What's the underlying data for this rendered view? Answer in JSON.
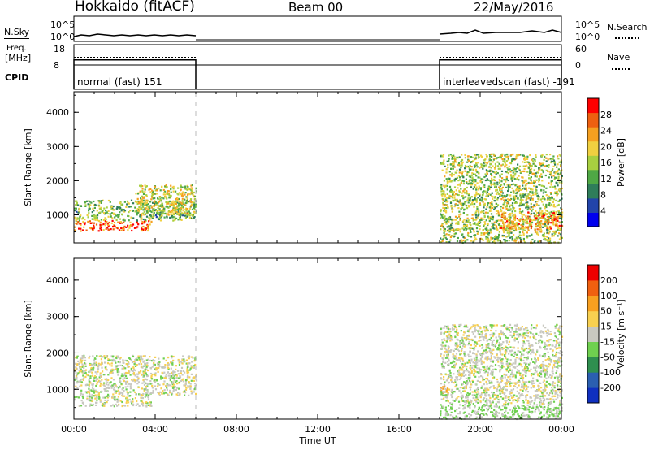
{
  "header": {
    "site": "Hokkaido (fitACF)",
    "beam": "Beam 00",
    "date": "22/May/2016"
  },
  "side_labels": {
    "nsky": "N.Sky",
    "nsearch": "N.Search",
    "freq_line1": "Freq.",
    "freq_line2": "[MHz]",
    "nave": "Nave",
    "cpid": "CPID"
  },
  "noise_panel": {
    "left_ticks": [
      "10^5",
      "10^0"
    ],
    "right_ticks": [
      "10^5",
      "10^0"
    ]
  },
  "freq_panel": {
    "left_ticks": [
      "18",
      "8"
    ],
    "right_ticks": [
      "60",
      "0"
    ],
    "segments": [
      {
        "start_hour": 0,
        "end_hour": 6,
        "freq_mhz": 10.5,
        "nave": 24
      },
      {
        "start_hour": 18,
        "end_hour": 24,
        "freq_mhz": 10.5,
        "nave": 24
      }
    ]
  },
  "cpid_panel": {
    "segments": [
      {
        "label": "normal (fast) 151",
        "start_hour": 0,
        "end_hour": 6
      },
      {
        "label": "interleavedscan (fast) -191",
        "start_hour": 18,
        "end_hour": 24
      }
    ]
  },
  "chart_data": [
    {
      "type": "heatmap",
      "parameter": "power",
      "ylabel": "Slant Range [km]",
      "ylim": [
        180,
        4600
      ],
      "yticks": [
        "4000",
        "3000",
        "2000",
        "1000"
      ],
      "colorbar": {
        "label": "Power [dB]",
        "ticks": [
          "28",
          "24",
          "20",
          "16",
          "12",
          "8",
          "4"
        ],
        "colors": [
          "#0000ee",
          "#2244aa",
          "#2f7d5a",
          "#4fa845",
          "#a8d040",
          "#f0d040",
          "#f5a020",
          "#ee6010",
          "#ff0000"
        ]
      },
      "regions": [
        {
          "start_hour": 0.0,
          "end_hour": 3.8,
          "range_km": [
            550,
            850
          ],
          "value_db": 26
        },
        {
          "start_hour": 0.0,
          "end_hour": 6.0,
          "range_km": [
            850,
            1450
          ],
          "value_db": 14
        },
        {
          "start_hour": 3.0,
          "end_hour": 6.0,
          "range_km": [
            1000,
            1900
          ],
          "value_db": 18
        },
        {
          "start_hour": 18.0,
          "end_hour": 18.4,
          "range_km": [
            850,
            1150
          ],
          "value_db": 14
        },
        {
          "start_hour": 18.0,
          "end_hour": 24.0,
          "range_km": [
            200,
            600
          ],
          "value_db": 16
        },
        {
          "start_hour": 18.0,
          "end_hour": 24.0,
          "range_km": [
            600,
            2800
          ],
          "value_db": 16
        },
        {
          "start_hour": 21.0,
          "end_hour": 24.0,
          "range_km": [
            600,
            1100
          ],
          "value_db": 24
        }
      ]
    },
    {
      "type": "heatmap",
      "parameter": "velocity",
      "xlabel": "Time UT",
      "ylabel": "Slant Range [km]",
      "ylim": [
        180,
        4600
      ],
      "yticks": [
        "4000",
        "3000",
        "2000",
        "1000"
      ],
      "xticks": [
        "00:00",
        "04:00",
        "08:00",
        "12:00",
        "16:00",
        "20:00",
        "00:00"
      ],
      "colorbar": {
        "label": "Velocity [m s⁻¹]",
        "ticks": [
          "200",
          "100",
          "50",
          "15",
          "-15",
          "-50",
          "-100",
          "-200"
        ],
        "colors": [
          "#1030c0",
          "#2b5fb0",
          "#2f8f4f",
          "#6fd04f",
          "#c8c8c0",
          "#f8d050",
          "#f8a020",
          "#f06010",
          "#ee0000"
        ]
      },
      "regions": [
        {
          "start_hour": 0.0,
          "end_hour": 3.8,
          "range_km": [
            550,
            850
          ],
          "value_ms": 0
        },
        {
          "start_hour": 0.0,
          "end_hour": 6.0,
          "range_km": [
            850,
            1950
          ],
          "value_ms": 0
        },
        {
          "start_hour": 18.0,
          "end_hour": 18.4,
          "range_km": [
            850,
            1150
          ],
          "value_ms": -80
        },
        {
          "start_hour": 18.0,
          "end_hour": 24.0,
          "range_km": [
            200,
            600
          ],
          "value_ms": 20
        },
        {
          "start_hour": 18.0,
          "end_hour": 24.0,
          "range_km": [
            600,
            2800
          ],
          "value_ms": 0
        }
      ]
    }
  ]
}
